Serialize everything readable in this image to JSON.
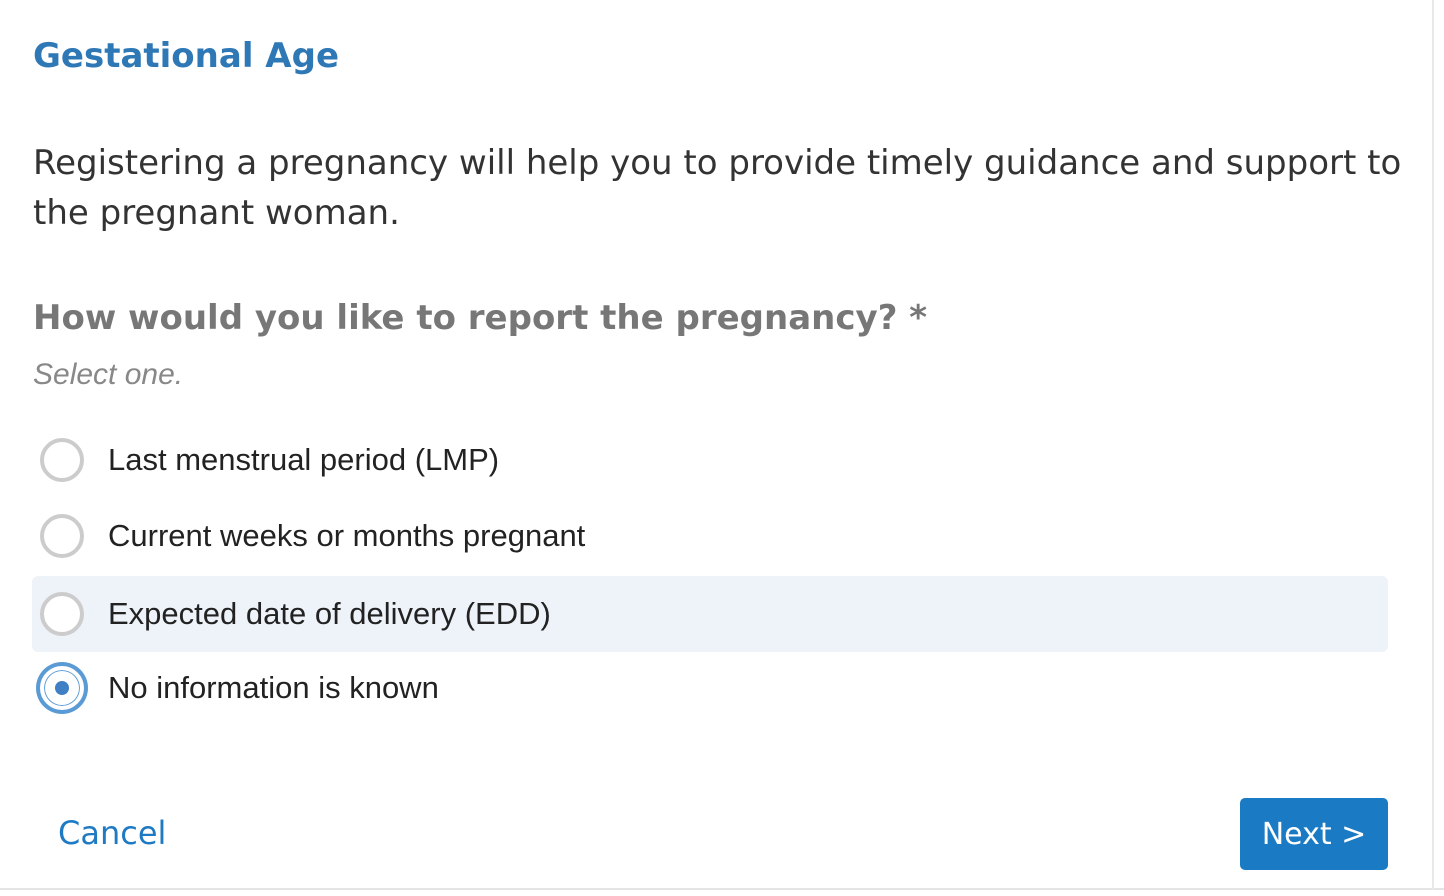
{
  "header": {
    "title": "Gestational Age"
  },
  "intro": "Registering a pregnancy will help you to provide timely guidance and support to the pregnant woman.",
  "question": {
    "label": "How would you like to report the pregnancy? *",
    "hint": "Select one.",
    "options": [
      "Last menstrual period (LMP)",
      "Current weeks or months pregnant",
      "Expected date of delivery (EDD)",
      "No information is known"
    ]
  },
  "footer": {
    "cancel": "Cancel",
    "next": "Next >"
  }
}
